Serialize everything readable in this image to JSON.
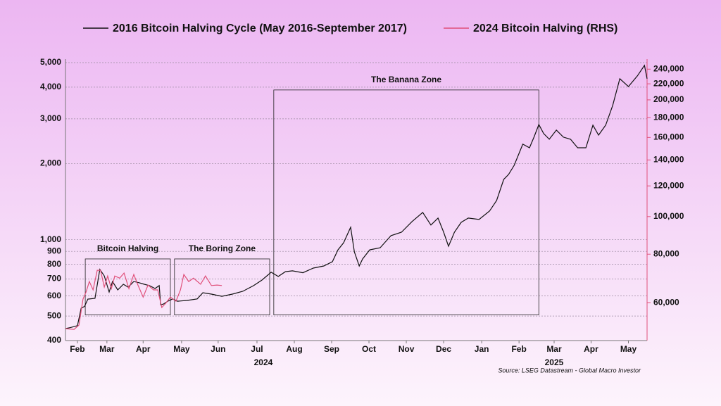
{
  "chart_data": {
    "type": "line",
    "log_scale": true,
    "grid": true,
    "legend_position": "top",
    "source": "Source: LSEG Datastream - Global Macro Investor",
    "xlim": [
      0,
      15.58
    ],
    "xticks": [
      {
        "value": 0.32,
        "label": "Feb"
      },
      {
        "value": 1.11,
        "label": "Mar"
      },
      {
        "value": 2.08,
        "label": "Apr"
      },
      {
        "value": 3.11,
        "label": "May"
      },
      {
        "value": 4.09,
        "label": "Jun"
      },
      {
        "value": 5.13,
        "label": "Jul"
      },
      {
        "value": 6.13,
        "label": "Aug"
      },
      {
        "value": 7.13,
        "label": "Sep"
      },
      {
        "value": 8.13,
        "label": "Oct"
      },
      {
        "value": 9.13,
        "label": "Nov"
      },
      {
        "value": 10.13,
        "label": "Dec"
      },
      {
        "value": 11.15,
        "label": "Jan"
      },
      {
        "value": 12.15,
        "label": "Feb"
      },
      {
        "value": 13.09,
        "label": "Mar"
      },
      {
        "value": 14.08,
        "label": "Apr"
      },
      {
        "value": 15.08,
        "label": "May"
      }
    ],
    "year_labels": [
      {
        "value": 5.3,
        "label": "2024"
      },
      {
        "value": 13.09,
        "label": "2025"
      }
    ],
    "ylim": [
      400,
      5000
    ],
    "yticks": [
      {
        "value": 5000,
        "label": "5,000"
      },
      {
        "value": 4000,
        "label": "4,000"
      },
      {
        "value": 3000,
        "label": "3,000"
      },
      {
        "value": 2000,
        "label": "2,000"
      },
      {
        "value": 1000,
        "label": "1,000"
      },
      900,
      800,
      700,
      600,
      500,
      400
    ],
    "y2lim": [
      47900,
      249500
    ],
    "y2ticks": [
      {
        "value": 240000,
        "label": "240,000"
      },
      {
        "value": 220000,
        "label": "220,000"
      },
      {
        "value": 200000,
        "label": "200,000"
      },
      {
        "value": 180000,
        "label": "180,000"
      },
      {
        "value": 160000,
        "label": "160,000"
      },
      {
        "value": 140000,
        "label": "140,000"
      },
      {
        "value": 120000,
        "label": "120,000"
      },
      {
        "value": 100000,
        "label": "100,000"
      },
      {
        "value": 80000,
        "label": "80,000"
      },
      {
        "value": 60000,
        "label": "60,000"
      }
    ],
    "y2_color": "#e0507a",
    "zones": [
      {
        "label": "Bitcoin Halving",
        "x": [
          0.53,
          2.81
        ],
        "y": [
          505,
          840
        ]
      },
      {
        "label": "The Boring Zone",
        "x": [
          2.92,
          5.47
        ],
        "y": [
          505,
          840
        ]
      },
      {
        "label": "The Banana Zone",
        "x": [
          5.58,
          12.68
        ],
        "y": [
          505,
          3900
        ]
      }
    ],
    "series": [
      {
        "name": "2016 Bitcoin Halving Cycle (May 2016-September 2017)",
        "color": "#111111",
        "axis": "y",
        "x": [
          0,
          0.13,
          0.32,
          0.42,
          0.51,
          0.6,
          0.79,
          0.92,
          1.04,
          1.17,
          1.26,
          1.4,
          1.55,
          1.68,
          1.83,
          1.98,
          2.11,
          2.25,
          2.4,
          2.51,
          2.55,
          2.62,
          2.74,
          2.87,
          3,
          3.25,
          3.53,
          3.68,
          3.91,
          4.19,
          4.47,
          4.75,
          5.04,
          5.26,
          5.51,
          5.7,
          5.89,
          6.08,
          6.36,
          6.64,
          6.92,
          7.15,
          7.3,
          7.45,
          7.64,
          7.74,
          7.87,
          7.96,
          8.15,
          8.43,
          8.72,
          9,
          9.28,
          9.57,
          9.79,
          9.98,
          10.13,
          10.26,
          10.42,
          10.6,
          10.79,
          11.08,
          11.36,
          11.55,
          11.74,
          11.87,
          12.02,
          12.25,
          12.43,
          12.55,
          12.68,
          12.81,
          12.96,
          13.15,
          13.34,
          13.53,
          13.72,
          13.94,
          14.13,
          14.28,
          14.47,
          14.66,
          14.85,
          15.08,
          15.32,
          15.51,
          15.58
        ],
        "values": [
          446,
          450,
          458,
          537,
          545,
          583,
          587,
          764,
          720,
          622,
          684,
          634,
          667,
          650,
          684,
          676,
          667,
          659,
          642,
          659,
          554,
          557,
          572,
          584,
          572,
          576,
          584,
          618,
          610,
          598,
          610,
          626,
          659,
          693,
          744,
          716,
          748,
          754,
          741,
          773,
          788,
          819,
          912,
          973,
          1120,
          895,
          788,
          840,
          912,
          930,
          1038,
          1071,
          1178,
          1282,
          1143,
          1218,
          1071,
          942,
          1071,
          1171,
          1218,
          1202,
          1298,
          1428,
          1730,
          1810,
          1967,
          2383,
          2307,
          2540,
          2848,
          2624,
          2492,
          2708,
          2540,
          2492,
          2307,
          2307,
          2832,
          2588,
          2832,
          3390,
          4320,
          4024,
          4430,
          4876,
          4320
        ]
      },
      {
        "name": "2024 Bitcoin Halving (RHS)",
        "color": "#e0507a",
        "axis": "y2",
        "x": [
          0,
          0.23,
          0.36,
          0.47,
          0.55,
          0.64,
          0.74,
          0.85,
          0.94,
          1.04,
          1.13,
          1.23,
          1.32,
          1.45,
          1.57,
          1.7,
          1.83,
          1.94,
          2.08,
          2.21,
          2.36,
          2.47,
          2.58,
          2.7,
          2.81,
          2.96,
          3.08,
          3.17,
          3.3,
          3.43,
          3.62,
          3.75,
          3.91,
          4.06,
          4.19
        ],
        "values": [
          51400,
          51200,
          52500,
          61300,
          63900,
          68000,
          64700,
          72700,
          72700,
          65800,
          70300,
          65200,
          70300,
          69400,
          71500,
          65200,
          70900,
          66600,
          62000,
          66600,
          64700,
          64700,
          58300,
          60000,
          62000,
          60500,
          64700,
          70900,
          68000,
          69400,
          66900,
          70300,
          66400,
          66600,
          66400
        ]
      }
    ]
  }
}
